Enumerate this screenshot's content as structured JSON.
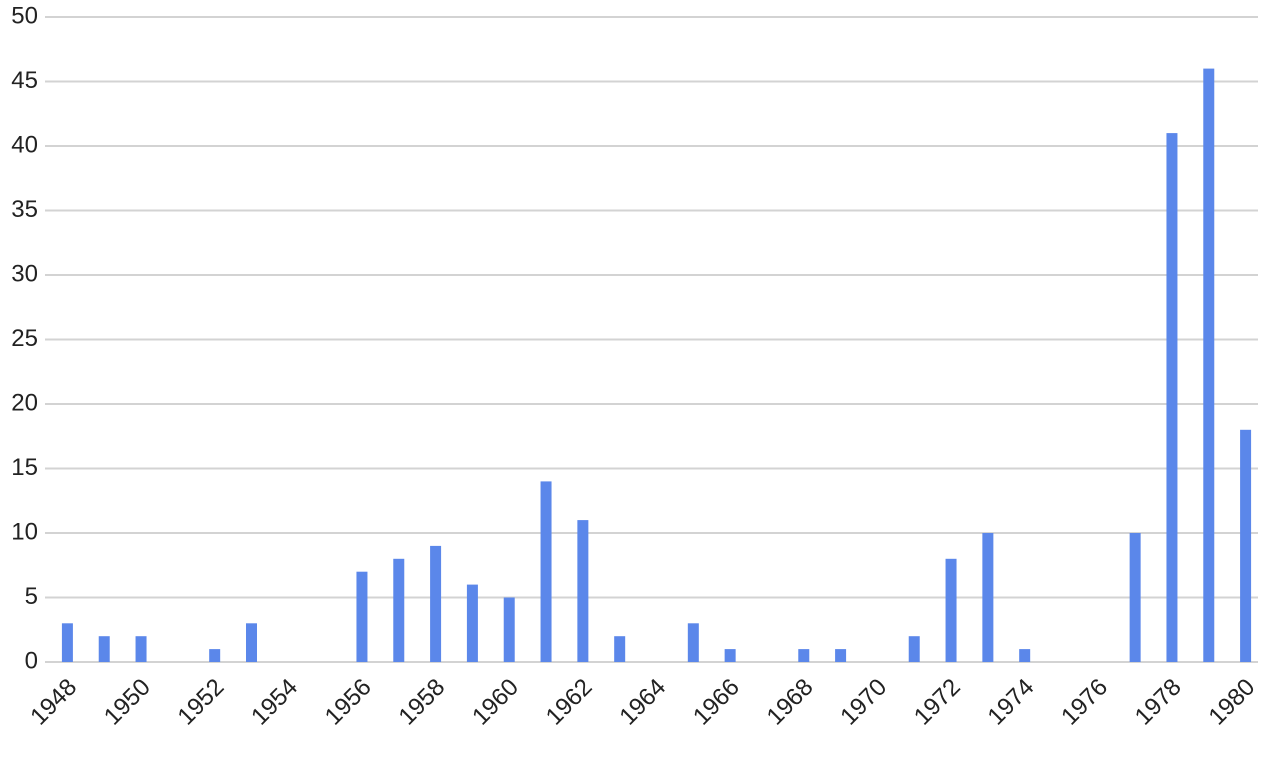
{
  "chart_data": {
    "type": "bar",
    "categories": [
      "1948",
      null,
      "1950",
      null,
      "1952",
      null,
      "1954",
      null,
      "1956",
      null,
      "1958",
      null,
      "1960",
      null,
      "1962",
      null,
      "1964",
      null,
      "1966",
      null,
      "1968",
      null,
      "1970",
      null,
      "1972",
      null,
      "1974",
      null,
      "1976",
      null,
      "1978",
      null,
      "1980"
    ],
    "values": [
      3,
      2,
      2,
      0,
      1,
      3,
      0,
      0,
      7,
      8,
      9,
      6,
      5,
      14,
      11,
      2,
      0,
      3,
      1,
      0,
      1,
      1,
      0,
      2,
      8,
      10,
      1,
      0,
      0,
      10,
      41,
      46,
      18
    ],
    "color": "#5b87ea",
    "ylim": [
      0,
      50
    ],
    "yticks": [
      0,
      5,
      10,
      15,
      20,
      25,
      30,
      35,
      40,
      45,
      50
    ],
    "grid": true
  }
}
